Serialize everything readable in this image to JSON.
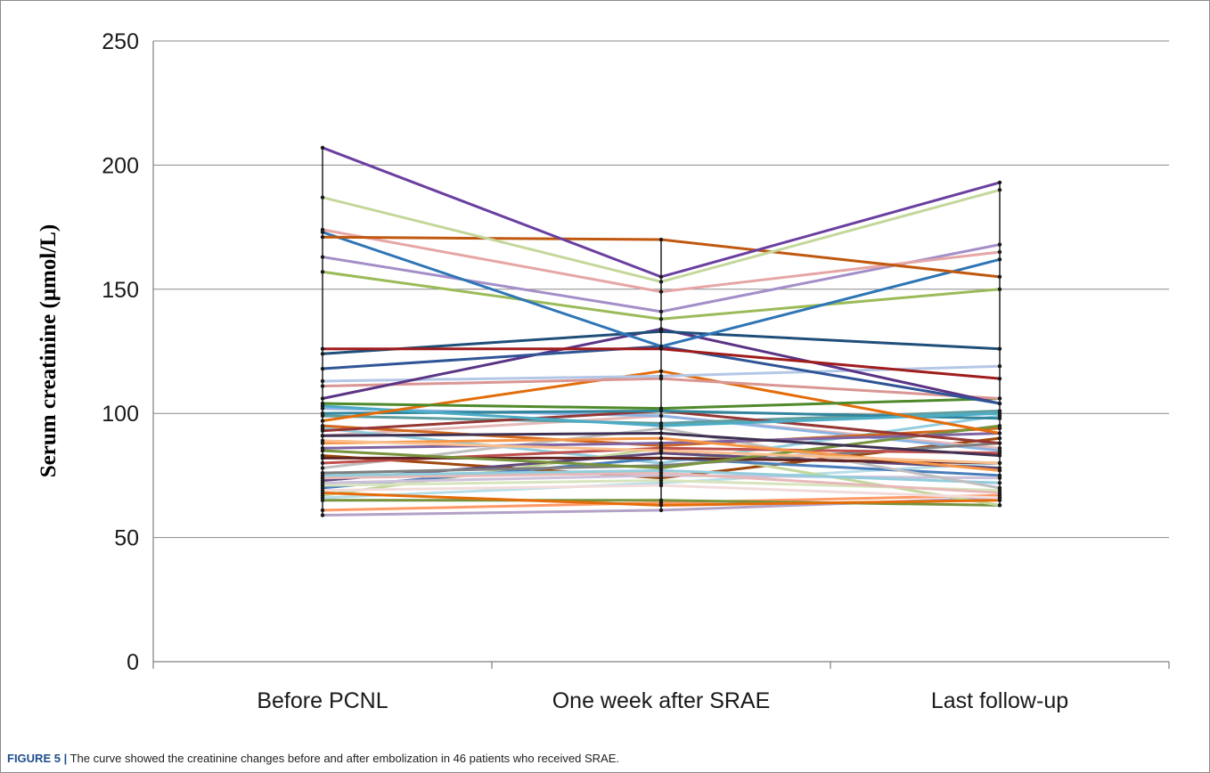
{
  "caption": {
    "label": "FIGURE 5 |",
    "text": "The curve showed the creatinine changes before and after embolization in 46 patients who received SRAE."
  },
  "chart_data": {
    "type": "line",
    "title": "",
    "xlabel": "",
    "ylabel": "Serum creatinine (μmol/L)",
    "ylim": [
      0,
      250
    ],
    "yticks": [
      0,
      50,
      100,
      150,
      200,
      250
    ],
    "grid": true,
    "legend": "none",
    "categories": [
      "Before PCNL",
      "One week after SRAE",
      "Last follow-up"
    ],
    "series": [
      {
        "values": [
          207,
          155,
          193
        ],
        "color": "#6b3fa0"
      },
      {
        "values": [
          187,
          153,
          190
        ],
        "color": "#c4d79b"
      },
      {
        "values": [
          171,
          170,
          155
        ],
        "color": "#c0580f"
      },
      {
        "values": [
          174,
          149,
          165
        ],
        "color": "#e6a6a6"
      },
      {
        "values": [
          173,
          127,
          162
        ],
        "color": "#2e75b6"
      },
      {
        "values": [
          163,
          141,
          168
        ],
        "color": "#a48ec8"
      },
      {
        "values": [
          157,
          138,
          150
        ],
        "color": "#9bbb59"
      },
      {
        "values": [
          126,
          126,
          114
        ],
        "color": "#a01c1c"
      },
      {
        "values": [
          124,
          133,
          126
        ],
        "color": "#1f4e79"
      },
      {
        "values": [
          118,
          127,
          104
        ],
        "color": "#2f5597"
      },
      {
        "values": [
          106,
          134,
          104
        ],
        "color": "#5b3385"
      },
      {
        "values": [
          113,
          115,
          119
        ],
        "color": "#b4c7e7"
      },
      {
        "values": [
          111,
          114,
          106
        ],
        "color": "#d99694"
      },
      {
        "values": [
          104,
          102,
          106
        ],
        "color": "#4f8a2a"
      },
      {
        "values": [
          97,
          117,
          92
        ],
        "color": "#e36c09"
      },
      {
        "values": [
          103,
          95,
          100
        ],
        "color": "#4bacc6"
      },
      {
        "values": [
          100,
          101,
          98
        ],
        "color": "#31859c"
      },
      {
        "values": [
          93,
          101,
          88
        ],
        "color": "#953735"
      },
      {
        "values": [
          91,
          92,
          83
        ],
        "color": "#403152"
      },
      {
        "values": [
          89,
          85,
          80
        ],
        "color": "#fabf8f"
      },
      {
        "values": [
          88,
          90,
          77
        ],
        "color": "#f79646"
      },
      {
        "values": [
          86,
          88,
          92
        ],
        "color": "#8064a2"
      },
      {
        "values": [
          85,
          78,
          95
        ],
        "color": "#77933c"
      },
      {
        "values": [
          82,
          82,
          80
        ],
        "color": "#632523"
      },
      {
        "values": [
          80,
          86,
          84
        ],
        "color": "#c0504d"
      },
      {
        "values": [
          78,
          94,
          70
        ],
        "color": "#bfbfbf"
      },
      {
        "values": [
          76,
          79,
          88
        ],
        "color": "#7f7f7f"
      },
      {
        "values": [
          75,
          77,
          72
        ],
        "color": "#92cddc"
      },
      {
        "values": [
          74,
          76,
          68
        ],
        "color": "#e6b9b8"
      },
      {
        "values": [
          73,
          84,
          78
        ],
        "color": "#604a7b"
      },
      {
        "values": [
          72,
          75,
          74
        ],
        "color": "#ccc1da"
      },
      {
        "values": [
          71,
          73,
          69
        ],
        "color": "#d7e4bd"
      },
      {
        "values": [
          70,
          82,
          75
        ],
        "color": "#4a7ebb"
      },
      {
        "values": [
          69,
          71,
          66
        ],
        "color": "#f2dcdb"
      },
      {
        "values": [
          68,
          63,
          65
        ],
        "color": "#e46c0a"
      },
      {
        "values": [
          67,
          86,
          63
        ],
        "color": "#c3d69b"
      },
      {
        "values": [
          66,
          72,
          80
        ],
        "color": "#b7dee8"
      },
      {
        "values": [
          65,
          65,
          63
        ],
        "color": "#76923c"
      },
      {
        "values": [
          59,
          61,
          66
        ],
        "color": "#b3a2c7"
      },
      {
        "values": [
          95,
          87,
          94
        ],
        "color": "#d2691e"
      },
      {
        "values": [
          99,
          96,
          101
        ],
        "color": "#5f9ea0"
      },
      {
        "values": [
          102,
          99,
          85
        ],
        "color": "#8db3e2"
      },
      {
        "values": [
          94,
          80,
          99
        ],
        "color": "#93cddd"
      },
      {
        "values": [
          91,
          99,
          86
        ],
        "color": "#e5b9b7"
      },
      {
        "values": [
          83,
          74,
          90
        ],
        "color": "#9e480e"
      },
      {
        "values": [
          61,
          64,
          67
        ],
        "color": "#ff9966"
      }
    ]
  }
}
